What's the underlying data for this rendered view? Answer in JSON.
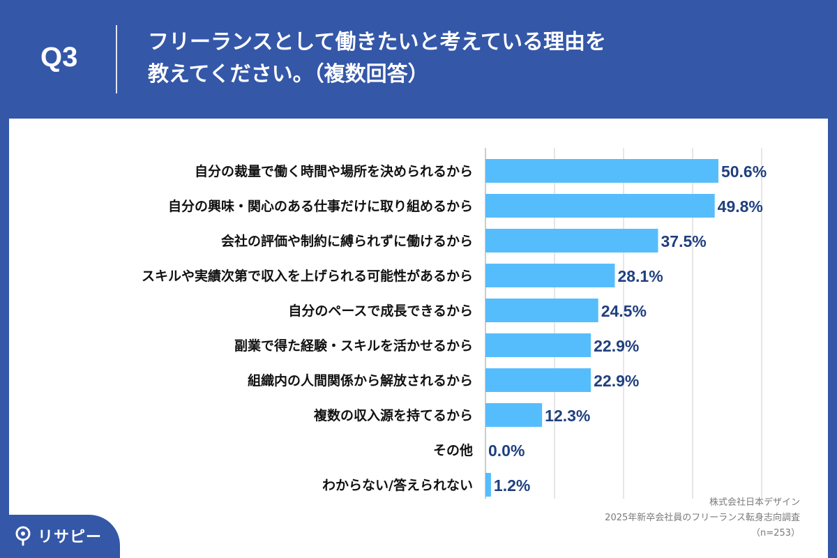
{
  "header": {
    "q_label": "Q3",
    "title_line1": "フリーランスとして働きたいと考えている理由を",
    "title_line2": "教えてください。（複数回答）"
  },
  "chart_data": {
    "type": "bar",
    "orientation": "horizontal",
    "title": "フリーランスとして働きたいと考えている理由を教えてください。（複数回答）",
    "xlabel": "",
    "ylabel": "",
    "xlim": [
      0,
      100
    ],
    "grid": true,
    "unit": "%",
    "categories": [
      "自分の裁量で働く時間や場所を決められるから",
      "自分の興味・関心のある仕事だけに取り組めるから",
      "会社の評価や制約に縛られずに働けるから",
      "スキルや実績次第で収入を上げられる可能性があるから",
      "自分のペースで成長できるから",
      "副業で得た経験・スキルを活かせるから",
      "組織内の人間関係から解放されるから",
      "複数の収入源を持てるから",
      "その他",
      "わからない/答えられない"
    ],
    "values": [
      50.6,
      49.8,
      37.5,
      28.1,
      24.5,
      22.9,
      22.9,
      12.3,
      0.0,
      1.2
    ],
    "value_labels": [
      "50.6%",
      "49.8%",
      "37.5%",
      "28.1%",
      "24.5%",
      "22.9%",
      "22.9%",
      "12.3%",
      "0.0%",
      "1.2%"
    ]
  },
  "source": {
    "company": "株式会社日本デザイン",
    "survey": "2025年新卒会社員のフリーランス転身志向調査",
    "sample": "（n=253）"
  },
  "logo": {
    "text": "リサピー",
    "icon": "pin-icon"
  },
  "colors": {
    "header_bg": "#3457A8",
    "bar": "#56BDFD",
    "value_text": "#1F3F7F",
    "label_text": "#111111",
    "grid": "#cccccc"
  }
}
